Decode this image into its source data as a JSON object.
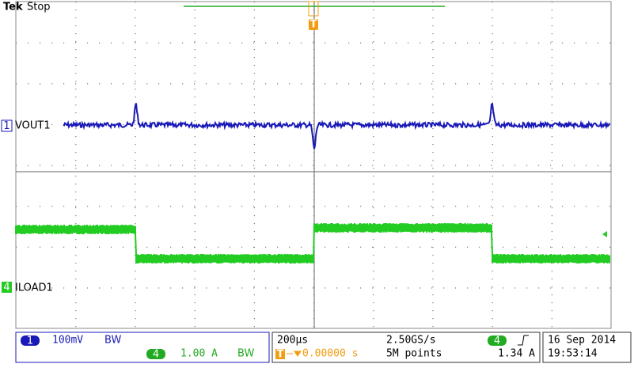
{
  "header": {
    "brand": "Tek",
    "status": "Stop"
  },
  "trigger_marker": "T",
  "channels": [
    {
      "number": "1",
      "label": "VOUT1"
    },
    {
      "number": "4",
      "label": "ILOAD1"
    }
  ],
  "status_bar": {
    "ch1_number": "1",
    "ch1_scale": "100mV",
    "ch1_bw": "BW",
    "ch4_number": "4",
    "ch4_scale": "1.00 A",
    "ch4_bw": "BW",
    "timebase": "200µs",
    "sample_rate": "2.50GS/s",
    "trigger_icon": "T",
    "trigger_position": "0.00000 s",
    "record_length": "5M points",
    "trigger_source": "4",
    "trigger_level": "1.34 A",
    "date": "16 Sep 2014",
    "time": "19:53:14"
  }
}
